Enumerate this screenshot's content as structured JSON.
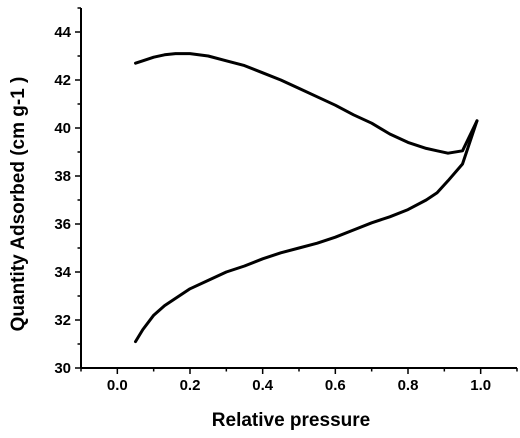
{
  "chart_data": {
    "type": "line",
    "title": "",
    "xlabel": "Relative pressure",
    "ylabel": "Quantity Adsorbed (cm g-1 )",
    "xlim": [
      -0.1,
      1.1
    ],
    "ylim": [
      30,
      45
    ],
    "xticks": [
      0.0,
      0.2,
      0.4,
      0.6,
      0.8,
      1.0
    ],
    "xtick_labels": [
      "0.0",
      "0.2",
      "0.4",
      "0.6",
      "0.8",
      "1.0"
    ],
    "yticks": [
      30,
      32,
      34,
      36,
      38,
      40,
      42,
      44
    ],
    "ytick_labels": [
      "30",
      "32",
      "34",
      "36",
      "38",
      "40",
      "42",
      "44"
    ],
    "grid": false,
    "legend": "none",
    "line_color": "#000000",
    "series": [
      {
        "x": [
          0.05,
          0.07,
          0.1,
          0.13,
          0.16,
          0.2,
          0.25,
          0.3,
          0.35,
          0.4,
          0.45,
          0.5,
          0.55,
          0.6,
          0.65,
          0.7,
          0.75,
          0.8,
          0.85,
          0.88,
          0.91,
          0.95,
          0.99
        ],
        "values": [
          31.1,
          31.6,
          32.2,
          32.6,
          32.9,
          33.3,
          33.65,
          34.0,
          34.25,
          34.55,
          34.8,
          35.0,
          35.2,
          35.45,
          35.75,
          36.05,
          36.3,
          36.6,
          37.0,
          37.3,
          37.8,
          38.5,
          40.3
        ]
      },
      {
        "x": [
          0.99,
          0.95,
          0.91,
          0.88,
          0.85,
          0.8,
          0.75,
          0.7,
          0.65,
          0.6,
          0.55,
          0.5,
          0.45,
          0.4,
          0.35,
          0.3,
          0.25,
          0.2,
          0.16,
          0.13,
          0.1,
          0.07,
          0.05
        ],
        "values": [
          40.3,
          39.05,
          38.95,
          39.05,
          39.15,
          39.4,
          39.75,
          40.2,
          40.55,
          40.95,
          41.3,
          41.65,
          42.0,
          42.3,
          42.6,
          42.8,
          43.0,
          43.1,
          43.1,
          43.05,
          42.95,
          42.8,
          42.7
        ]
      }
    ]
  }
}
